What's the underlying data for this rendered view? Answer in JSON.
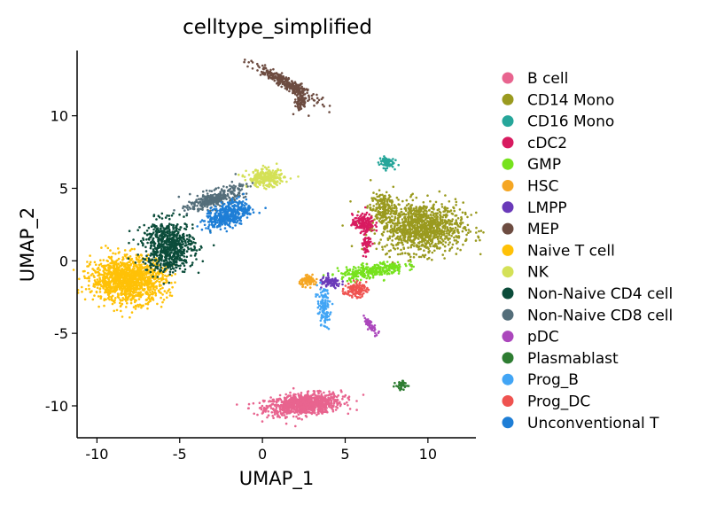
{
  "chart_data": {
    "type": "scatter",
    "title": "celltype_simplified",
    "xlabel": "UMAP_1",
    "ylabel": "UMAP_2",
    "xlim": [
      -11.2,
      12.9
    ],
    "ylim": [
      -12.2,
      14.5
    ],
    "xticks": [
      -10,
      -5,
      0,
      5,
      10
    ],
    "xtick_labels": [
      "-10",
      "-5",
      "0",
      "5",
      "10"
    ],
    "yticks": [
      -10,
      -5,
      0,
      5,
      10
    ],
    "ytick_labels": [
      "-10",
      "-5",
      "0",
      "5",
      "10"
    ],
    "legend_position": "right",
    "series": [
      {
        "name": "B cell",
        "color": "#E8648F",
        "clusters": [
          {
            "center": [
              2.5,
              -9.9
            ],
            "spread": [
              2.1,
              0.65
            ],
            "n": 900,
            "angle": 6
          }
        ]
      },
      {
        "name": "CD14 Mono",
        "color": "#9A9A1F",
        "clusters": [
          {
            "center": [
              9.6,
              2.3
            ],
            "spread": [
              2.3,
              1.55
            ],
            "n": 1100,
            "angle": 0
          },
          {
            "center": [
              7.3,
              3.6
            ],
            "spread": [
              0.7,
              1.0
            ],
            "n": 180,
            "angle": 0
          }
        ]
      },
      {
        "name": "CD16 Mono",
        "color": "#26A69A",
        "clusters": [
          {
            "center": [
              7.5,
              6.8
            ],
            "spread": [
              0.4,
              0.35
            ],
            "n": 80,
            "angle": 0
          }
        ]
      },
      {
        "name": "cDC2",
        "color": "#D81B60",
        "clusters": [
          {
            "center": [
              6.1,
              2.6
            ],
            "spread": [
              0.6,
              0.55
            ],
            "n": 160,
            "angle": 0
          },
          {
            "center": [
              6.3,
              1.3
            ],
            "spread": [
              0.25,
              0.9
            ],
            "n": 60,
            "angle": 0
          }
        ]
      },
      {
        "name": "GMP",
        "color": "#76E21D",
        "clusters": [
          {
            "center": [
              6.6,
              -0.7
            ],
            "spread": [
              1.8,
              0.45
            ],
            "n": 280,
            "angle": 10
          }
        ]
      },
      {
        "name": "HSC",
        "color": "#F5A623",
        "clusters": [
          {
            "center": [
              2.8,
              -1.4
            ],
            "spread": [
              0.5,
              0.3
            ],
            "n": 80,
            "angle": 0
          }
        ]
      },
      {
        "name": "LMPP",
        "color": "#6A3AB9",
        "clusters": [
          {
            "center": [
              4.1,
              -1.5
            ],
            "spread": [
              0.6,
              0.35
            ],
            "n": 90,
            "angle": 0
          }
        ]
      },
      {
        "name": "MEP",
        "color": "#6D4C41",
        "clusters": [
          {
            "center": [
              1.4,
              12.3
            ],
            "spread": [
              1.9,
              0.3
            ],
            "n": 300,
            "angle": -33
          },
          {
            "center": [
              2.3,
              11.0
            ],
            "spread": [
              0.35,
              0.6
            ],
            "n": 80,
            "angle": 0
          }
        ]
      },
      {
        "name": "Naive T cell",
        "color": "#FFC107",
        "clusters": [
          {
            "center": [
              -8.1,
              -1.3
            ],
            "spread": [
              2.0,
              1.4
            ],
            "n": 1300,
            "angle": 0
          }
        ]
      },
      {
        "name": "NK",
        "color": "#D4E157",
        "clusters": [
          {
            "center": [
              0.2,
              5.7
            ],
            "spread": [
              1.0,
              0.55
            ],
            "n": 280,
            "angle": 0
          }
        ]
      },
      {
        "name": "Non-Naive CD4 cell",
        "color": "#0B4C3A",
        "clusters": [
          {
            "center": [
              -5.7,
              1.0
            ],
            "spread": [
              1.4,
              1.6
            ],
            "n": 700,
            "angle": 0
          }
        ]
      },
      {
        "name": "Non-Naive CD8 cell",
        "color": "#546E7A",
        "clusters": [
          {
            "center": [
              -2.8,
              4.3
            ],
            "spread": [
              1.6,
              0.5
            ],
            "n": 320,
            "angle": 20
          }
        ]
      },
      {
        "name": "pDC",
        "color": "#AB47BC",
        "clusters": [
          {
            "center": [
              6.5,
              -4.4
            ],
            "spread": [
              0.18,
              0.55
            ],
            "n": 60,
            "angle": 30
          }
        ]
      },
      {
        "name": "Plasmablast",
        "color": "#2E7D32",
        "clusters": [
          {
            "center": [
              8.4,
              -8.6
            ],
            "spread": [
              0.3,
              0.3
            ],
            "n": 50,
            "angle": 0
          }
        ]
      },
      {
        "name": "Prog_B",
        "color": "#42A5F5",
        "clusters": [
          {
            "center": [
              3.7,
              -3.2
            ],
            "spread": [
              0.35,
              1.2
            ],
            "n": 120,
            "angle": 0
          }
        ]
      },
      {
        "name": "Prog_DC",
        "color": "#EF5350",
        "clusters": [
          {
            "center": [
              5.6,
              -2.0
            ],
            "spread": [
              0.6,
              0.45
            ],
            "n": 110,
            "angle": 0
          }
        ]
      },
      {
        "name": "Unconventional T",
        "color": "#1E7ED6",
        "clusters": [
          {
            "center": [
              -2.0,
              3.2
            ],
            "spread": [
              1.3,
              0.7
            ],
            "n": 420,
            "angle": 25
          }
        ]
      }
    ]
  }
}
